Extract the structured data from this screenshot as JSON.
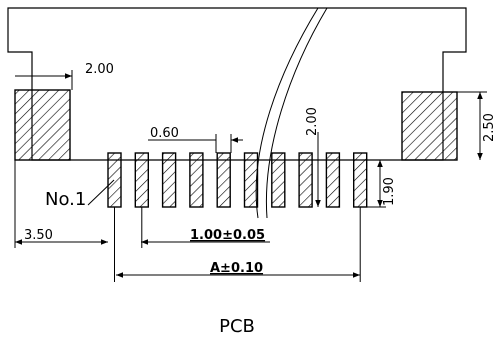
{
  "labels": {
    "dim_2_00_left": "2.00",
    "dim_0_60": "0.60",
    "dim_2_00_vertical": "2.00",
    "dim_2_50": "2.50",
    "dim_1_90": "1.90",
    "no_1": "No.1",
    "dim_3_50": "3.50",
    "pitch": "1.00±0.05",
    "span": "A±0.10",
    "caption": "PCB"
  },
  "pin_count": 10,
  "colors": {
    "line": "#000000",
    "background": "#ffffff"
  }
}
